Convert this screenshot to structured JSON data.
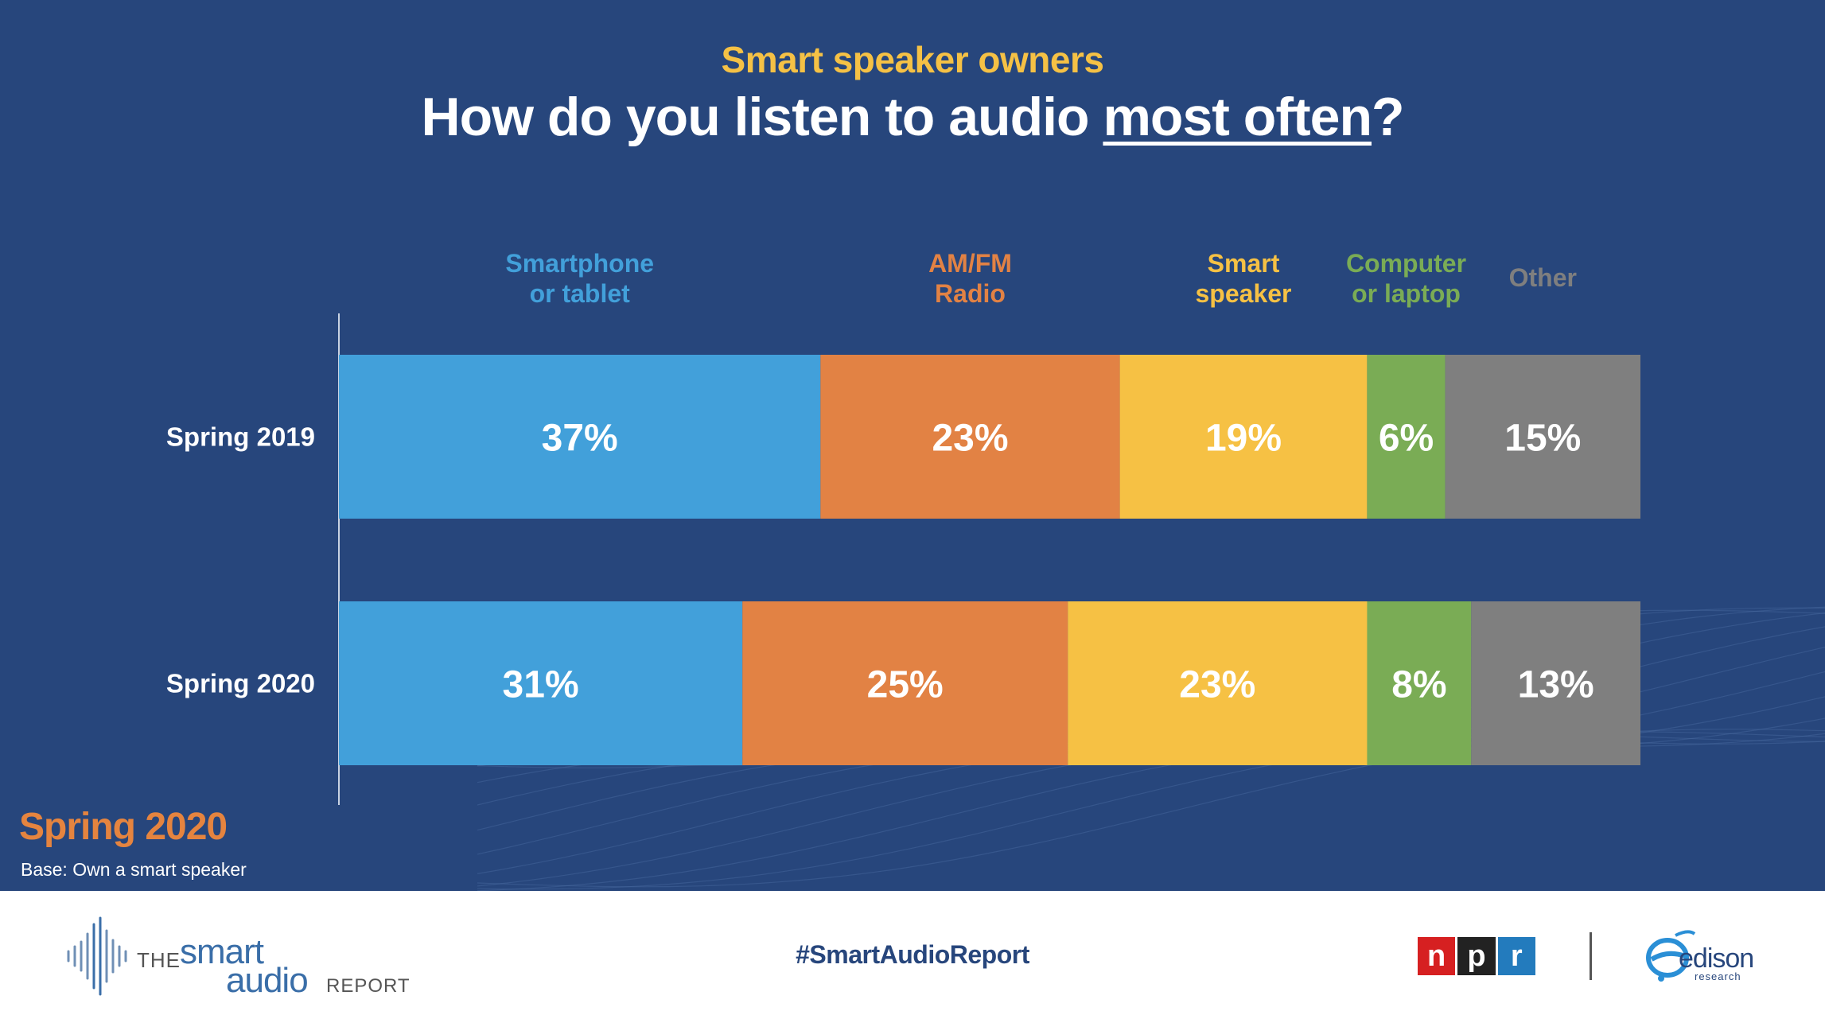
{
  "header": {
    "subtitle": "Smart speaker owners",
    "title_prefix": "How do you listen to audio ",
    "title_emphasis": "most often",
    "title_suffix": "?"
  },
  "chart_data": {
    "type": "bar",
    "orientation": "horizontal",
    "stacked": true,
    "categories": [
      "Spring 2019",
      "Spring 2020"
    ],
    "legend_placement": "top",
    "grid": false,
    "series": [
      {
        "name": "Smartphone or tablet",
        "color": "#42a0da",
        "values": [
          37,
          31
        ],
        "labels": [
          "37%",
          "31%"
        ]
      },
      {
        "name": "AM/FM Radio",
        "color": "#e28244",
        "values": [
          23,
          25
        ],
        "labels": [
          "23%",
          "25%"
        ]
      },
      {
        "name": "Smart speaker",
        "color": "#f6c144",
        "values": [
          19,
          23
        ],
        "labels": [
          "19%",
          "23%"
        ]
      },
      {
        "name": "Computer or laptop",
        "color": "#7aac55",
        "values": [
          6,
          8
        ],
        "labels": [
          "6%",
          "8%"
        ]
      },
      {
        "name": "Other",
        "color": "#7f7f7f",
        "values": [
          15,
          13
        ],
        "labels": [
          "15%",
          "13%"
        ]
      }
    ],
    "legend_lines": [
      [
        "Smartphone",
        "or tablet"
      ],
      [
        "AM/FM",
        "Radio"
      ],
      [
        "Smart",
        "speaker"
      ],
      [
        "Computer",
        "or laptop"
      ],
      [
        "Other"
      ]
    ],
    "legend_colors": [
      "#42a0da",
      "#e28244",
      "#f6c144",
      "#7aac55",
      "#7f7f7f"
    ]
  },
  "notes": {
    "season": "Spring 2020",
    "base": "Base: Own a smart speaker"
  },
  "footer": {
    "hashtag": "#SmartAudioReport",
    "logo_the": "THE",
    "logo_smart": "smart",
    "logo_audio": "audio",
    "logo_report": "REPORT",
    "npr_letters": [
      "n",
      "p",
      "r"
    ],
    "npr_colors": [
      "#d62021",
      "#222222",
      "#237bbd"
    ],
    "edison_word": "edison",
    "edison_sub": "research"
  },
  "colors": {
    "background": "#27467c",
    "subtitle": "#f5c145",
    "season": "#e5843f"
  }
}
